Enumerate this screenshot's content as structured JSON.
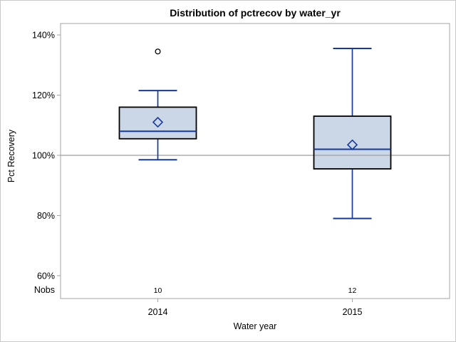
{
  "chart_data": {
    "type": "boxplot",
    "title": "Distribution of pctrecov by water_yr",
    "xlabel": "Water year",
    "ylabel": "Pct Recovery",
    "nobs_label": "Nobs",
    "ylim": [
      52.4,
      143.8
    ],
    "y_ticks": [
      {
        "value": 140,
        "label": "140%"
      },
      {
        "value": 120,
        "label": "120%"
      },
      {
        "value": 100,
        "label": "100%"
      },
      {
        "value": 80,
        "label": "80%"
      },
      {
        "value": 60,
        "label": "60%"
      }
    ],
    "reference_line": 100,
    "grid": "off",
    "categories": [
      "2014",
      "2015"
    ],
    "series": [
      {
        "category": "2014",
        "nobs": 10,
        "whisker_low": 98.5,
        "q1": 105.5,
        "median": 108,
        "q3": 116,
        "whisker_high": 121.5,
        "mean": 111,
        "outliers": [
          134.5
        ]
      },
      {
        "category": "2015",
        "nobs": 12,
        "whisker_low": 79,
        "q1": 95.5,
        "median": 102,
        "q3": 113,
        "whisker_high": 135.5,
        "mean": 103.5,
        "outliers": []
      }
    ],
    "colors": {
      "box_fill": "#CBD6E7",
      "box_border": "#000000",
      "line_blue": "#163A9C",
      "outlier": "#000000",
      "frame": "#A3A3A3",
      "ref_line": "#9E9E9E",
      "text": "#000000"
    }
  }
}
